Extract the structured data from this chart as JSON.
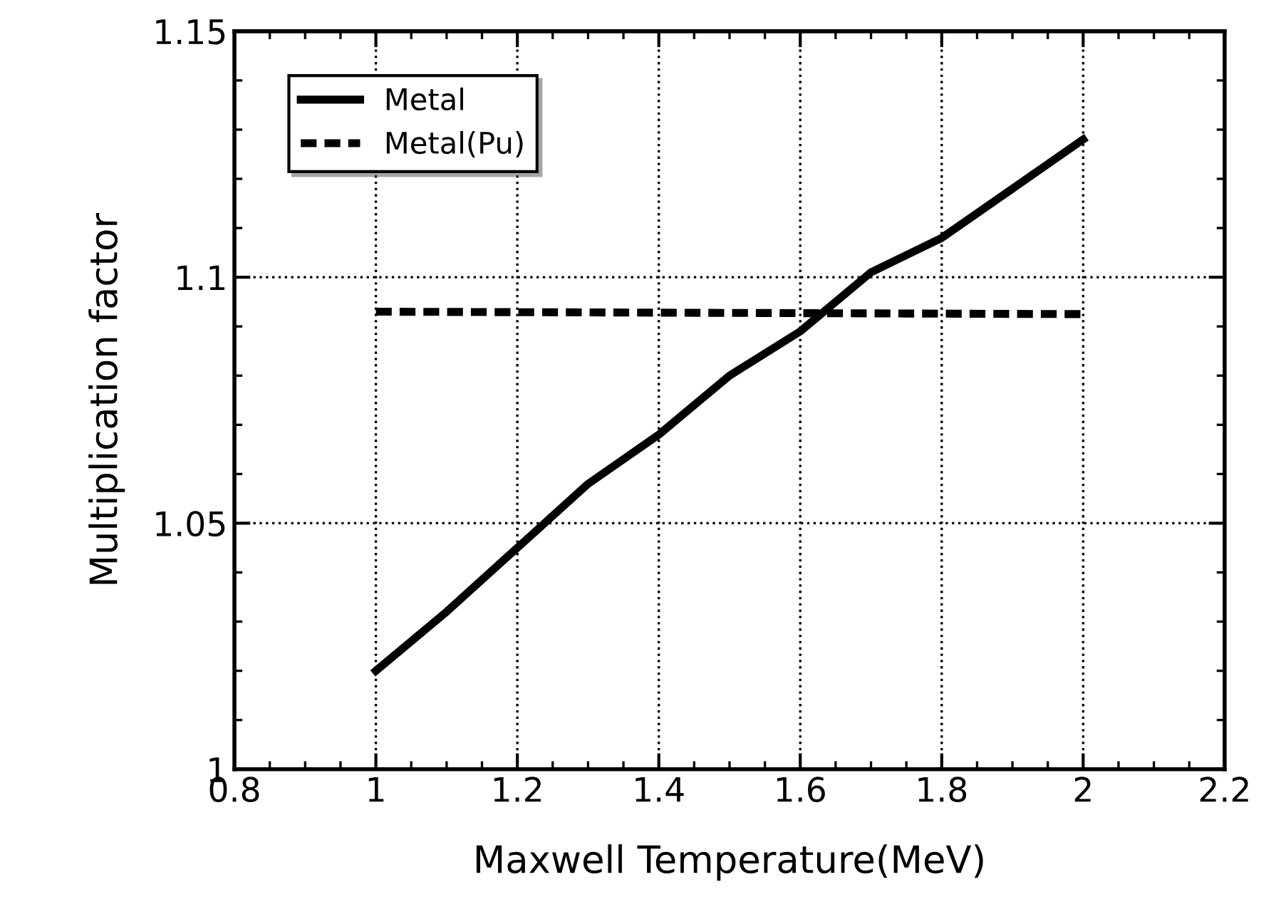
{
  "chart_data": {
    "type": "line",
    "xlabel": "Maxwell Temperature(MeV)",
    "ylabel": "Multiplication factor",
    "xlim": [
      0.8,
      2.2
    ],
    "xticks": [
      0.8,
      1,
      1.2,
      1.4,
      1.6,
      1.8,
      2,
      2.2
    ],
    "ylim": [
      1,
      1.15
    ],
    "yticks": [
      1,
      1.05,
      1.1,
      1.15
    ],
    "grid": true,
    "legend": "top left",
    "marker": "none",
    "series": [
      {
        "name": "Metal",
        "color": "#000000",
        "line_style": "solid",
        "x": [
          1,
          1.1,
          1.2,
          1.3,
          1.4,
          1.5,
          1.6,
          1.7,
          1.8,
          1.9,
          2
        ],
        "values": [
          1.02,
          1.032,
          1.045,
          1.058,
          1.068,
          1.08,
          1.089,
          1.101,
          1.108,
          1.118,
          1.128
        ]
      },
      {
        "name": "Metal(Pu)",
        "color": "#000000",
        "line_style": "dashed",
        "x": [
          1,
          2
        ],
        "values": [
          1.093,
          1.0925
        ]
      }
    ]
  }
}
